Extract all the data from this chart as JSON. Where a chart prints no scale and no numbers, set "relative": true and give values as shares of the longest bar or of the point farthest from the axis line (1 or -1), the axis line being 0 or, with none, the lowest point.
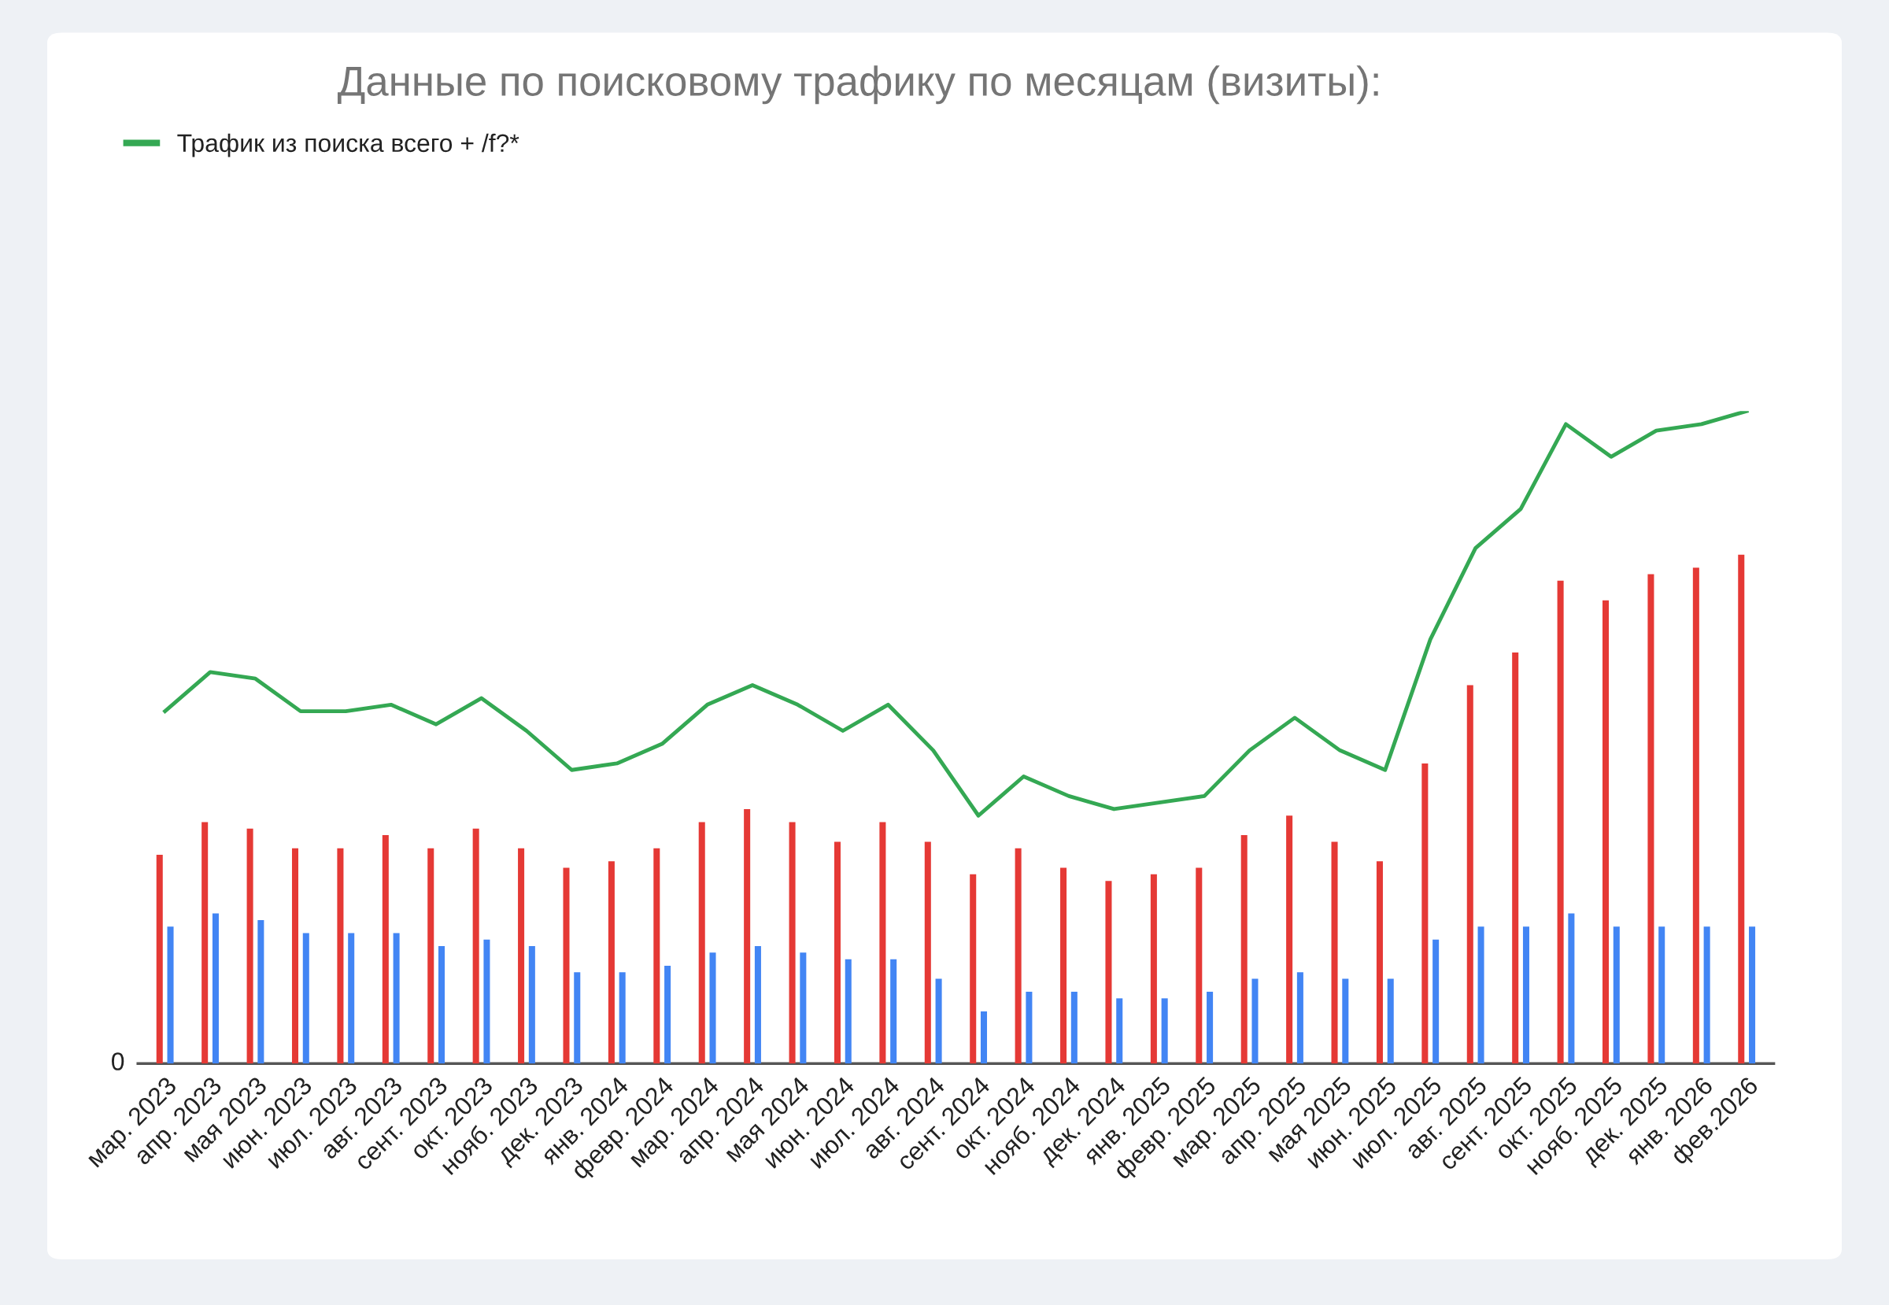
{
  "chart_data": {
    "type": "bar",
    "title": "Данные по поисковому трафику по месяцам (визиты):",
    "relative": true,
    "annotations": [
      "0"
    ],
    "legend": "top left",
    "categories": [
      "мар. 2023",
      "апр. 2023",
      "мая 2023",
      "июн. 2023",
      "июл. 2023",
      "авг. 2023",
      "сент. 2023",
      "окт. 2023",
      "нояб. 2023",
      "дек. 2023",
      "янв. 2024",
      "февр. 2024",
      "мар. 2024",
      "апр. 2024",
      "мая 2024",
      "июн. 2024",
      "июл. 2024",
      "авг. 2024",
      "сент. 2024",
      "окт. 2024",
      "нояб. 2024",
      "дек. 2024",
      "янв. 2025",
      "февр. 2025",
      "мар. 2025",
      "апр. 2025",
      "мая 2025",
      "июн. 2025",
      "июл. 2025",
      "авг. 2025",
      "сент. 2025",
      "окт. 2025",
      "нояб. 2025",
      "дек. 2025",
      "янв. 2026",
      "фев.2026"
    ],
    "series": [
      {
        "color": "#e53935",
        "values": [
          0.32,
          0.37,
          0.36,
          0.33,
          0.33,
          0.35,
          0.33,
          0.36,
          0.33,
          0.3,
          0.31,
          0.33,
          0.37,
          0.39,
          0.37,
          0.34,
          0.37,
          0.34,
          0.29,
          0.33,
          0.3,
          0.28,
          0.29,
          0.3,
          0.35,
          0.38,
          0.34,
          0.31,
          0.46,
          0.58,
          0.63,
          0.74,
          0.71,
          0.75,
          0.76,
          0.78
        ]
      },
      {
        "color": "#4285f4",
        "values": [
          0.21,
          0.23,
          0.22,
          0.2,
          0.2,
          0.2,
          0.18,
          0.19,
          0.18,
          0.14,
          0.14,
          0.15,
          0.17,
          0.18,
          0.17,
          0.16,
          0.16,
          0.13,
          0.08,
          0.11,
          0.11,
          0.1,
          0.1,
          0.11,
          0.13,
          0.14,
          0.13,
          0.13,
          0.19,
          0.21,
          0.21,
          0.23,
          0.21,
          0.21,
          0.21,
          0.21
        ]
      },
      {
        "type": "line",
        "name": "Трафик из поиска всего + /f?*",
        "color": "#34a853",
        "values": [
          0.54,
          0.6,
          0.59,
          0.54,
          0.54,
          0.55,
          0.52,
          0.56,
          0.51,
          0.45,
          0.46,
          0.49,
          0.55,
          0.58,
          0.55,
          0.51,
          0.55,
          0.48,
          0.38,
          0.44,
          0.41,
          0.39,
          0.4,
          0.41,
          0.48,
          0.53,
          0.48,
          0.45,
          0.65,
          0.79,
          0.85,
          0.98,
          0.93,
          0.97,
          0.98,
          1
        ]
      }
    ]
  }
}
